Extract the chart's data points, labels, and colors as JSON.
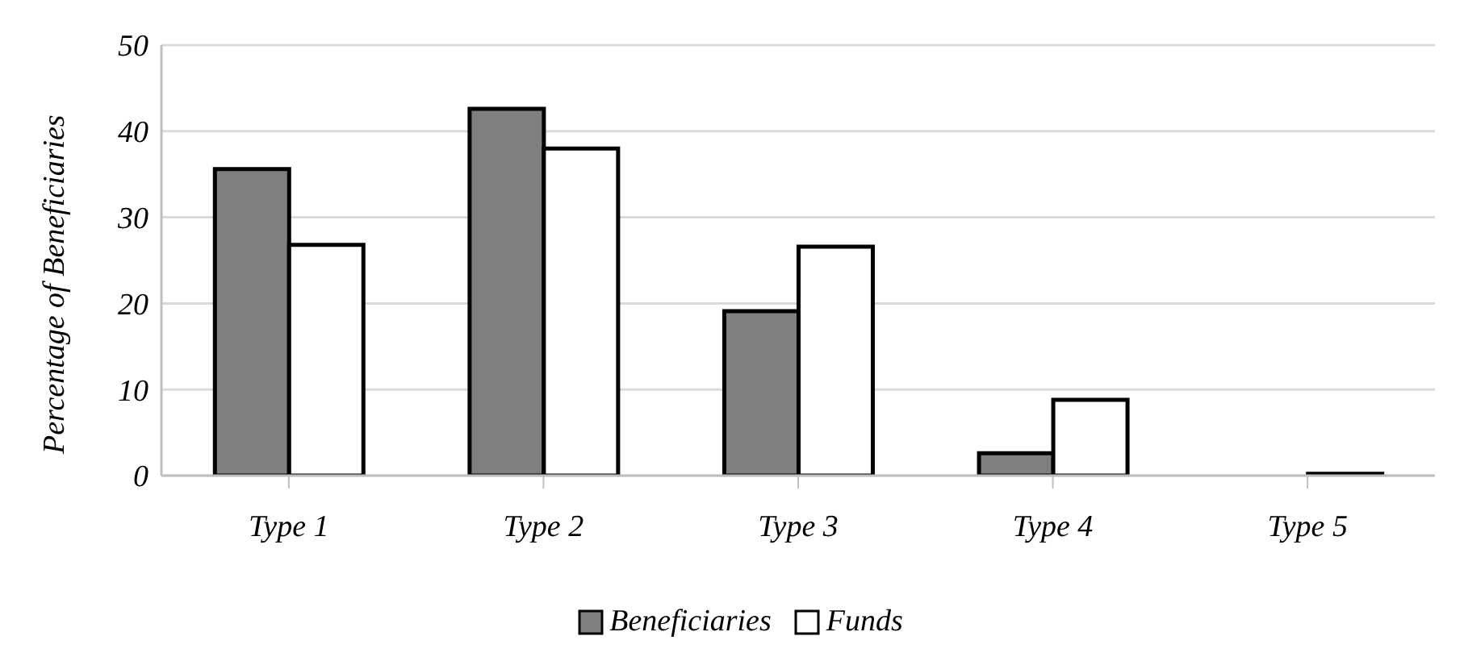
{
  "chart_data": {
    "type": "bar",
    "ylabel": "Percentage of Beneficiaries",
    "categories": [
      "Type 1",
      "Type 2",
      "Type 3",
      "Type 4",
      "Type 5"
    ],
    "series": [
      {
        "name": "Beneficiaries",
        "color": "#7f7f7f",
        "values": [
          35.6,
          42.6,
          19.1,
          2.6,
          0
        ]
      },
      {
        "name": "Funds",
        "color": "#ffffff",
        "values": [
          26.8,
          38.0,
          26.6,
          8.8,
          0.2
        ]
      }
    ],
    "ylim": [
      0,
      50
    ],
    "yticks": [
      0,
      10,
      20,
      30,
      40,
      50
    ],
    "grid": "y",
    "legend": "bottom"
  }
}
